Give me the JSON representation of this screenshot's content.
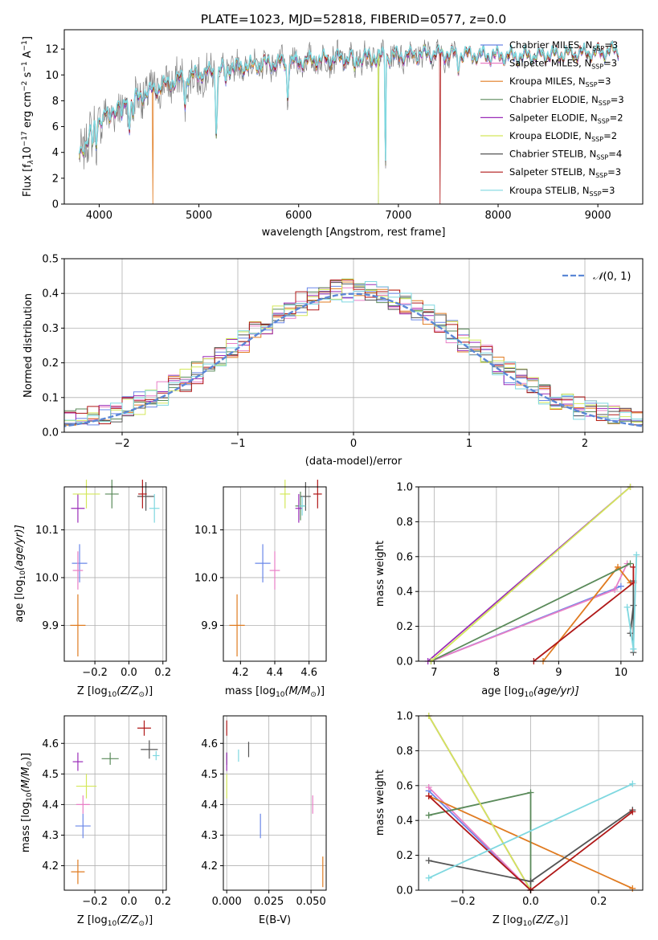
{
  "chart_data": [
    {
      "id": "spectrum",
      "type": "line",
      "title": "PLATE=1023, MJD=52818, FIBERID=0577, z=0.0",
      "xlabel": "wavelength [Angstrom, rest frame]",
      "ylabel": "Flux [f$_\\lambda$10$^{-17}$ erg cm$^{-2}$ s$^{-1}$ A$^{-1}$]",
      "ylabel_parts": {
        "a": "Flux [f",
        "b": "λ",
        "c": "10",
        "d": "−17",
        "e": " erg cm",
        "f": "−2",
        "g": " s",
        "h": "−1",
        "i": " A",
        "j": "−1",
        "k": "]"
      },
      "xlim": [
        3650,
        9450
      ],
      "ylim": [
        0,
        13.5
      ],
      "xticks": [
        4000,
        5000,
        6000,
        7000,
        8000,
        9000
      ],
      "yticks": [
        0,
        2,
        4,
        6,
        8,
        10,
        12
      ],
      "grid": false,
      "legend_position": "upper right",
      "series": [
        {
          "name": "Chabrier MILES, N_SSP=3",
          "label_main": "Chabrier MILES, N",
          "label_sub": "SSP",
          "label_tail": "=3",
          "color": "#6a87e8"
        },
        {
          "name": "Salpeter MILES, N_SSP=3",
          "label_main": "Salpeter MILES, N",
          "label_sub": "SSP",
          "label_tail": "=3",
          "color": "#e87fc6"
        },
        {
          "name": "Kroupa MILES, N_SSP=3",
          "label_main": "Kroupa MILES, N",
          "label_sub": "SSP",
          "label_tail": "=3",
          "color": "#e07b20"
        },
        {
          "name": "Chabrier ELODIE, N_SSP=3",
          "label_main": "Chabrier ELODIE, N",
          "label_sub": "SSP",
          "label_tail": "=3",
          "color": "#5a8a5a"
        },
        {
          "name": "Salpeter ELODIE, N_SSP=2",
          "label_main": "Salpeter ELODIE, N",
          "label_sub": "SSP",
          "label_tail": "=2",
          "color": "#9a2db8"
        },
        {
          "name": "Kroupa ELODIE, N_SSP=2",
          "label_main": "Kroupa ELODIE, N",
          "label_sub": "SSP",
          "label_tail": "=2",
          "color": "#d4e85a"
        },
        {
          "name": "Chabrier STELIB, N_SSP=4",
          "label_main": "Chabrier STELIB, N",
          "label_sub": "SSP",
          "label_tail": "=4",
          "color": "#555555"
        },
        {
          "name": "Salpeter STELIB, N_SSP=3",
          "label_main": "Salpeter STELIB, N",
          "label_sub": "SSP",
          "label_tail": "=3",
          "color": "#b01818"
        },
        {
          "name": "Kroupa STELIB, N_SSP=3",
          "label_main": "Kroupa STELIB, N",
          "label_sub": "SSP",
          "label_tail": "=3",
          "color": "#7fd8e0"
        }
      ],
      "data": {
        "data_color": "#808080",
        "continuum": [
          [
            3800,
            3.5
          ],
          [
            3850,
            4.5
          ],
          [
            3950,
            6.2
          ],
          [
            4050,
            6.8
          ],
          [
            4200,
            7.6
          ],
          [
            4400,
            8.3
          ],
          [
            4600,
            9.0
          ],
          [
            4800,
            9.6
          ],
          [
            5000,
            10.0
          ],
          [
            5300,
            10.5
          ],
          [
            5600,
            10.8
          ],
          [
            6000,
            11.0
          ],
          [
            6300,
            11.2
          ],
          [
            6600,
            11.3
          ],
          [
            6900,
            11.4
          ],
          [
            7200,
            11.6
          ],
          [
            7500,
            11.6
          ],
          [
            7800,
            11.5
          ],
          [
            8200,
            11.4
          ],
          [
            8600,
            11.6
          ],
          [
            9000,
            11.7
          ],
          [
            9200,
            11.9
          ]
        ],
        "absorption_lines": [
          [
            3934,
            1.5
          ],
          [
            3969,
            2.0
          ],
          [
            4102,
            1.0
          ],
          [
            4227,
            1.5
          ],
          [
            4304,
            1.8
          ],
          [
            4340,
            1.2
          ],
          [
            4861,
            2.0
          ],
          [
            5175,
            4.5
          ],
          [
            5270,
            1.0
          ],
          [
            5890,
            2.8
          ],
          [
            6563,
            1.2
          ],
          [
            6870,
            9.0
          ],
          [
            7600,
            1.0
          ]
        ],
        "model_dropouts": [
          [
            4540,
            "Kroupa MILES, N_SSP=3"
          ],
          [
            6800,
            "Kroupa ELODIE, N_SSP=2"
          ],
          [
            7420,
            "Salpeter STELIB, N_SSP=3"
          ],
          [
            6800,
            "Chabrier ELODIE, N_SSP=3"
          ]
        ]
      }
    },
    {
      "id": "residuals",
      "type": "histogram",
      "xlabel": "(data-model)/error",
      "ylabel": "Normed distribution",
      "xlim": [
        -2.5,
        2.5
      ],
      "ylim": [
        0,
        0.5
      ],
      "xticks": [
        -2,
        -1,
        0,
        1,
        2
      ],
      "yticks": [
        0.0,
        0.1,
        0.2,
        0.3,
        0.4,
        0.5
      ],
      "grid": true,
      "legend_position": "upper right",
      "reference_curve": {
        "name": "N(0,1)",
        "label_italic": "𝒩",
        "label_tail": "(0, 1)",
        "mean": 0,
        "sigma": 1,
        "color": "#5b87d6",
        "style": "dashed"
      },
      "bin_width": 0.1,
      "series_colors": [
        "#6a87e8",
        "#e87fc6",
        "#e07b20",
        "#5a8a5a",
        "#9a2db8",
        "#d4e85a",
        "#555555",
        "#b01818",
        "#7fd8e0"
      ]
    },
    {
      "id": "age_vs_Z",
      "type": "errorbar",
      "xlabel_main": "Z [log",
      "xlabel_sub": "10",
      "xlabel_tail": "(Z/Z",
      "xlabel_sub2": "⊙",
      "xlabel_end": ")]",
      "ylabel_main": "age  [log",
      "ylabel_sub": "10",
      "ylabel_tail": "(age/yr)]",
      "xlim": [
        -0.38,
        0.22
      ],
      "ylim": [
        9.825,
        10.19
      ],
      "xticks": [
        -0.2,
        0.0,
        0.2
      ],
      "xtick_labels": [
        "−0.2",
        "0.0",
        "0.2"
      ],
      "yticks": [
        9.9,
        10.0,
        10.1
      ],
      "ytick_labels": [
        "9.9",
        "10.0",
        "10.1"
      ],
      "grid": true,
      "points": [
        {
          "x": -0.29,
          "xerr": 0.045,
          "y": 10.03,
          "yerr": 0.04,
          "color": "#6a87e8"
        },
        {
          "x": -0.3,
          "xerr": 0.03,
          "y": 10.015,
          "yerr": 0.04,
          "color": "#e87fc6"
        },
        {
          "x": -0.3,
          "xerr": 0.045,
          "y": 9.9,
          "yerr": 0.065,
          "color": "#e07b20"
        },
        {
          "x": -0.1,
          "xerr": 0.04,
          "y": 10.175,
          "yerr": 0.03,
          "color": "#5a8a5a"
        },
        {
          "x": -0.3,
          "xerr": 0.04,
          "y": 10.145,
          "yerr": 0.03,
          "color": "#9a2db8"
        },
        {
          "x": -0.25,
          "xerr": 0.08,
          "y": 10.175,
          "yerr": 0.03,
          "color": "#d4e85a"
        },
        {
          "x": 0.1,
          "xerr": 0.05,
          "y": 10.17,
          "yerr": 0.03,
          "color": "#555555"
        },
        {
          "x": 0.08,
          "xerr": 0.025,
          "y": 10.175,
          "yerr": 0.03,
          "color": "#b01818"
        },
        {
          "x": 0.15,
          "xerr": 0.03,
          "y": 10.145,
          "yerr": 0.03,
          "color": "#7fd8e0"
        }
      ]
    },
    {
      "id": "age_vs_mass",
      "type": "errorbar",
      "xlabel_main": "mass [log",
      "xlabel_sub": "10",
      "xlabel_tail": "(M/M",
      "xlabel_sub2": "⊙",
      "xlabel_end": ")]",
      "xlim": [
        4.1,
        4.7
      ],
      "ylim": [
        9.825,
        10.19
      ],
      "xticks": [
        4.2,
        4.4,
        4.6
      ],
      "xtick_labels": [
        "4.2",
        "4.4",
        "4.6"
      ],
      "yticks": [
        9.9,
        10.0,
        10.1
      ],
      "ytick_labels": [
        "9.9",
        "10.0",
        "10.1"
      ],
      "grid": true,
      "points": [
        {
          "x": 4.33,
          "xerr": 0.045,
          "y": 10.03,
          "yerr": 0.04,
          "color": "#6a87e8"
        },
        {
          "x": 4.4,
          "xerr": 0.03,
          "y": 10.015,
          "yerr": 0.04,
          "color": "#e87fc6"
        },
        {
          "x": 4.18,
          "xerr": 0.045,
          "y": 9.9,
          "yerr": 0.065,
          "color": "#e07b20"
        },
        {
          "x": 4.55,
          "xerr": 0.03,
          "y": 10.15,
          "yerr": 0.03,
          "color": "#5a8a5a"
        },
        {
          "x": 4.54,
          "xerr": 0.02,
          "y": 10.145,
          "yerr": 0.03,
          "color": "#9a2db8"
        },
        {
          "x": 4.46,
          "xerr": 0.03,
          "y": 10.175,
          "yerr": 0.03,
          "color": "#d4e85a"
        },
        {
          "x": 4.58,
          "xerr": 0.03,
          "y": 10.17,
          "yerr": 0.03,
          "color": "#555555"
        },
        {
          "x": 4.65,
          "xerr": 0.025,
          "y": 10.175,
          "yerr": 0.03,
          "color": "#b01818"
        },
        {
          "x": 4.56,
          "xerr": 0.02,
          "y": 10.15,
          "yerr": 0.02,
          "color": "#7fd8e0"
        }
      ]
    },
    {
      "id": "massweight_vs_age",
      "type": "line",
      "xlabel_main": "age  [log",
      "xlabel_sub": "10",
      "xlabel_tail": "(age/yr)]",
      "ylabel": "mass weight",
      "xlim": [
        6.75,
        10.35
      ],
      "ylim": [
        0.0,
        1.0
      ],
      "xticks": [
        7,
        8,
        9,
        10
      ],
      "xtick_labels": [
        "7",
        "8",
        "9",
        "10"
      ],
      "yticks": [
        0.0,
        0.2,
        0.4,
        0.6,
        0.8,
        1.0
      ],
      "ytick_labels": [
        "0.0",
        "0.2",
        "0.4",
        "0.6",
        "0.8",
        "1.0"
      ],
      "grid": true,
      "series": [
        {
          "color": "#6a87e8",
          "x": [
            6.95,
            10.0
          ],
          "y": [
            0.0,
            0.43
          ]
        },
        {
          "color": "#e87fc6",
          "x": [
            6.95,
            9.9,
            10.1
          ],
          "y": [
            0.0,
            0.41,
            0.56
          ]
        },
        {
          "color": "#e07b20",
          "x": [
            8.75,
            9.95,
            10.15
          ],
          "y": [
            0.0,
            0.54,
            0.45
          ]
        },
        {
          "color": "#5a8a5a",
          "x": [
            6.95,
            10.15
          ],
          "y": [
            0.0,
            0.56
          ]
        },
        {
          "color": "#9a2db8",
          "x": [
            6.9,
            10.15
          ],
          "y": [
            0.0,
            1.0
          ]
        },
        {
          "color": "#d4e85a",
          "x": [
            6.95,
            10.15
          ],
          "y": [
            0.0,
            1.0
          ]
        },
        {
          "color": "#555555",
          "x": [
            10.15,
            10.2,
            10.2,
            10.2
          ],
          "y": [
            0.16,
            0.32,
            0.46,
            0.05
          ]
        },
        {
          "color": "#b01818",
          "x": [
            8.6,
            10.2,
            10.2
          ],
          "y": [
            0.0,
            0.45,
            0.54
          ]
        },
        {
          "color": "#7fd8e0",
          "x": [
            10.1,
            10.2,
            10.25
          ],
          "y": [
            0.31,
            0.07,
            0.61
          ]
        }
      ]
    },
    {
      "id": "mass_vs_Z",
      "type": "errorbar",
      "xlabel_main": "Z [log",
      "xlabel_sub": "10",
      "xlabel_tail": "(Z/Z",
      "xlabel_sub2": "⊙",
      "xlabel_end": ")]",
      "ylabel_main": "mass [log",
      "ylabel_sub": "10",
      "ylabel_tail": "(M/M",
      "ylabel_sub2": "⊙",
      "ylabel_end": ")]",
      "xlim": [
        -0.38,
        0.22
      ],
      "ylim": [
        4.12,
        4.69
      ],
      "xticks": [
        -0.2,
        0.0,
        0.2
      ],
      "xtick_labels": [
        "−0.2",
        "0.0",
        "0.2"
      ],
      "yticks": [
        4.2,
        4.3,
        4.4,
        4.5,
        4.6
      ],
      "ytick_labels": [
        "4.2",
        "4.3",
        "4.4",
        "4.5",
        "4.6"
      ],
      "grid": true,
      "points": [
        {
          "x": -0.27,
          "xerr": 0.045,
          "y": 4.33,
          "yerr": 0.04,
          "color": "#6a87e8"
        },
        {
          "x": -0.27,
          "xerr": 0.04,
          "y": 4.4,
          "yerr": 0.03,
          "color": "#e87fc6"
        },
        {
          "x": -0.3,
          "xerr": 0.04,
          "y": 4.18,
          "yerr": 0.04,
          "color": "#e07b20"
        },
        {
          "x": -0.11,
          "xerr": 0.05,
          "y": 4.55,
          "yerr": 0.02,
          "color": "#5a8a5a"
        },
        {
          "x": -0.3,
          "xerr": 0.03,
          "y": 4.54,
          "yerr": 0.03,
          "color": "#9a2db8"
        },
        {
          "x": -0.25,
          "xerr": 0.06,
          "y": 4.46,
          "yerr": 0.04,
          "color": "#d4e85a"
        },
        {
          "x": 0.12,
          "xerr": 0.05,
          "y": 4.58,
          "yerr": 0.03,
          "color": "#555555"
        },
        {
          "x": 0.09,
          "xerr": 0.04,
          "y": 4.65,
          "yerr": 0.025,
          "color": "#b01818"
        },
        {
          "x": 0.16,
          "xerr": 0.02,
          "y": 4.56,
          "yerr": 0.015,
          "color": "#7fd8e0"
        }
      ]
    },
    {
      "id": "mass_vs_ebv",
      "type": "errorbar",
      "xlabel": "E(B-V)",
      "xlim": [
        -0.002,
        0.059
      ],
      "ylim": [
        4.12,
        4.69
      ],
      "xticks": [
        0.0,
        0.025,
        0.05
      ],
      "xtick_labels": [
        "0.000",
        "0.025",
        "0.050"
      ],
      "yticks": [
        4.2,
        4.3,
        4.4,
        4.5,
        4.6
      ],
      "ytick_labels": [
        "4.2",
        "4.3",
        "4.4",
        "4.5",
        "4.6"
      ],
      "grid": true,
      "points": [
        {
          "x": 0.02,
          "y": 4.33,
          "yerr": 0.04,
          "color": "#6a87e8"
        },
        {
          "x": 0.051,
          "y": 4.4,
          "yerr": 0.03,
          "color": "#e87fc6"
        },
        {
          "x": 0.057,
          "y": 4.18,
          "yerr": 0.05,
          "color": "#e07b20"
        },
        {
          "x": 0.0,
          "y": 4.55,
          "yerr": 0.02,
          "color": "#5a8a5a"
        },
        {
          "x": 0.0,
          "y": 4.54,
          "yerr": 0.03,
          "color": "#9a2db8"
        },
        {
          "x": 0.0,
          "y": 4.46,
          "yerr": 0.04,
          "color": "#d4e85a"
        },
        {
          "x": 0.013,
          "y": 4.58,
          "yerr": 0.025,
          "color": "#555555"
        },
        {
          "x": 0.0,
          "y": 4.65,
          "yerr": 0.025,
          "color": "#b01818"
        },
        {
          "x": 0.007,
          "y": 4.56,
          "yerr": 0.02,
          "color": "#7fd8e0"
        }
      ]
    },
    {
      "id": "massweight_vs_Z",
      "type": "line",
      "xlabel_main": "Z [log",
      "xlabel_sub": "10",
      "xlabel_tail": "(Z/Z",
      "xlabel_sub2": "⊙",
      "xlabel_end": ")]",
      "ylabel": "mass weight",
      "xlim": [
        -0.33,
        0.33
      ],
      "ylim": [
        0.0,
        1.0
      ],
      "xticks": [
        -0.2,
        0.0,
        0.2
      ],
      "xtick_labels": [
        "−0.2",
        "0.0",
        "0.2"
      ],
      "yticks": [
        0.0,
        0.2,
        0.4,
        0.6,
        0.8,
        1.0
      ],
      "ytick_labels": [
        "0.0",
        "0.2",
        "0.4",
        "0.6",
        "0.8",
        "1.0"
      ],
      "grid": true,
      "series": [
        {
          "color": "#6a87e8",
          "x": [
            -0.3,
            0.0
          ],
          "y": [
            0.57,
            0.0
          ]
        },
        {
          "color": "#e87fc6",
          "x": [
            -0.3,
            0.0
          ],
          "y": [
            0.59,
            0.0
          ]
        },
        {
          "color": "#e07b20",
          "x": [
            -0.3,
            0.3
          ],
          "y": [
            0.54,
            0.01
          ]
        },
        {
          "color": "#5a8a5a",
          "x": [
            -0.3,
            0.0,
            0.0
          ],
          "y": [
            0.43,
            0.56,
            0.0
          ]
        },
        {
          "color": "#9a2db8",
          "x": [
            -0.3,
            0.0
          ],
          "y": [
            1.0,
            0.0
          ]
        },
        {
          "color": "#d4e85a",
          "x": [
            -0.3,
            0.0
          ],
          "y": [
            1.0,
            0.0
          ]
        },
        {
          "color": "#555555",
          "x": [
            -0.3,
            0.0,
            0.3
          ],
          "y": [
            0.17,
            0.05,
            0.46
          ]
        },
        {
          "color": "#b01818",
          "x": [
            -0.3,
            0.0,
            0.3
          ],
          "y": [
            0.54,
            0.0,
            0.45
          ]
        },
        {
          "color": "#7fd8e0",
          "x": [
            -0.3,
            0.3
          ],
          "y": [
            0.07,
            0.61
          ]
        }
      ]
    }
  ]
}
